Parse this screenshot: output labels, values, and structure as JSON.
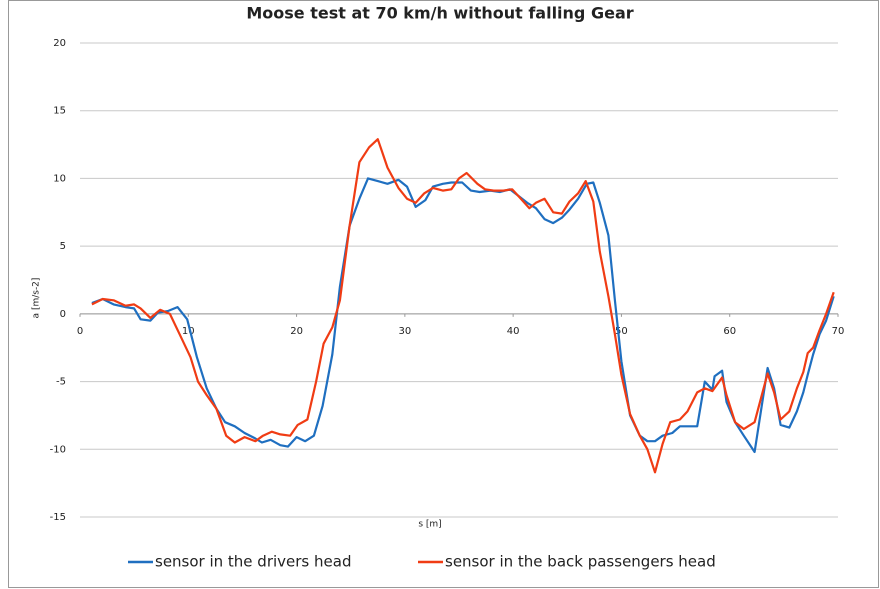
{
  "chart_data": {
    "type": "line",
    "title": "Moose test at 70 km/h without falling Gear",
    "x_label": "s [m]",
    "y_label": "a [m/s-2]",
    "xlim": [
      0,
      70
    ],
    "xticks": [
      0,
      10,
      20,
      30,
      40,
      50,
      60,
      70
    ],
    "ylim": [
      -15,
      20
    ],
    "yticks": [
      -15,
      -10,
      -5,
      0,
      5,
      10,
      15,
      20
    ],
    "grid": true,
    "legend": "bottom",
    "series": [
      {
        "name": "sensor in the drivers head",
        "color": "#1f6fc0",
        "x": [
          1.1,
          2.1,
          3.1,
          4.2,
          5.0,
          5.6,
          6.5,
          7.2,
          8.1,
          9.0,
          9.9,
          10.8,
          11.7,
          12.6,
          13.4,
          14.3,
          15.2,
          16.2,
          16.8,
          17.6,
          18.5,
          19.2,
          20.0,
          20.8,
          21.6,
          22.4,
          23.3,
          24.0,
          24.9,
          25.8,
          26.6,
          27.5,
          28.4,
          29.4,
          30.2,
          31.0,
          31.9,
          32.6,
          33.5,
          34.3,
          35.3,
          36.1,
          36.9,
          37.9,
          38.8,
          39.7,
          40.5,
          41.3,
          42.1,
          42.9,
          43.7,
          44.5,
          45.2,
          46.0,
          46.8,
          47.4,
          48.0,
          48.8,
          49.4,
          50.0,
          50.8,
          51.7,
          52.4,
          53.1,
          53.8,
          54.7,
          55.4,
          56.1,
          57.0,
          57.7,
          58.4,
          58.6,
          59.3,
          59.7,
          60.5,
          61.3,
          62.3,
          63.5,
          64.1,
          64.7,
          65.5,
          66.2,
          66.8,
          67.2,
          67.7,
          68.3,
          68.9,
          69.6
        ],
        "values": [
          0.8,
          1.1,
          0.7,
          0.5,
          0.4,
          -0.4,
          -0.5,
          0.1,
          0.2,
          0.5,
          -0.4,
          -3.2,
          -5.5,
          -7.0,
          -8.0,
          -8.3,
          -8.8,
          -9.2,
          -9.5,
          -9.3,
          -9.7,
          -9.8,
          -9.1,
          -9.4,
          -9.0,
          -6.8,
          -3.0,
          2.0,
          6.5,
          8.5,
          10.0,
          9.8,
          9.6,
          9.9,
          9.4,
          7.9,
          8.4,
          9.4,
          9.6,
          9.7,
          9.7,
          9.1,
          9.0,
          9.1,
          9.0,
          9.2,
          8.7,
          8.2,
          7.8,
          7.0,
          6.7,
          7.1,
          7.7,
          8.5,
          9.6,
          9.7,
          8.2,
          5.8,
          1.0,
          -3.5,
          -7.5,
          -9.0,
          -9.4,
          -9.4,
          -9.0,
          -8.8,
          -8.3,
          -8.3,
          -8.3,
          -5.0,
          -5.6,
          -4.6,
          -4.2,
          -6.5,
          -8.0,
          -9.0,
          -10.2,
          -4.0,
          -5.5,
          -8.2,
          -8.4,
          -7.2,
          -5.8,
          -4.5,
          -3.0,
          -1.5,
          -0.5,
          1.3
        ]
      },
      {
        "name": "sensor in the back passengers head",
        "color": "#f03c14",
        "x": [
          1.1,
          2.1,
          3.1,
          4.2,
          5.0,
          5.6,
          6.5,
          7.4,
          8.3,
          9.2,
          10.2,
          10.9,
          11.7,
          12.6,
          13.5,
          14.3,
          15.2,
          16.2,
          16.9,
          17.7,
          18.5,
          19.4,
          20.1,
          21.0,
          21.8,
          22.5,
          23.3,
          24.0,
          24.9,
          25.8,
          26.7,
          27.5,
          28.4,
          29.4,
          30.2,
          31.0,
          31.8,
          32.6,
          33.5,
          34.3,
          35.0,
          35.7,
          36.7,
          37.4,
          38.2,
          39.1,
          39.9,
          40.6,
          41.5,
          42.1,
          42.9,
          43.7,
          44.5,
          45.2,
          46.0,
          46.7,
          47.4,
          48.0,
          48.8,
          49.4,
          50.0,
          50.8,
          51.7,
          52.4,
          53.1,
          53.8,
          54.5,
          55.4,
          56.1,
          57.0,
          57.7,
          58.4,
          59.3,
          59.7,
          60.5,
          61.3,
          62.3,
          63.5,
          64.1,
          64.7,
          65.5,
          66.2,
          66.8,
          67.2,
          67.7,
          68.3,
          68.9,
          69.6
        ],
        "values": [
          0.7,
          1.1,
          1.0,
          0.6,
          0.7,
          0.4,
          -0.3,
          0.3,
          0.0,
          -1.5,
          -3.2,
          -5.0,
          -6.0,
          -7.0,
          -9.0,
          -9.5,
          -9.1,
          -9.4,
          -9.0,
          -8.7,
          -8.9,
          -9.0,
          -8.2,
          -7.8,
          -5.0,
          -2.2,
          -1.0,
          1.0,
          6.5,
          11.2,
          12.3,
          12.9,
          10.8,
          9.3,
          8.5,
          8.2,
          8.9,
          9.3,
          9.1,
          9.2,
          10.0,
          10.4,
          9.6,
          9.2,
          9.1,
          9.1,
          9.2,
          8.6,
          7.8,
          8.2,
          8.5,
          7.5,
          7.4,
          8.3,
          8.9,
          9.8,
          8.3,
          4.6,
          1.3,
          -1.5,
          -4.5,
          -7.4,
          -9.0,
          -10.0,
          -11.7,
          -9.6,
          -8.0,
          -7.8,
          -7.2,
          -5.8,
          -5.5,
          -5.7,
          -4.7,
          -6.0,
          -8.0,
          -8.5,
          -8.0,
          -4.4,
          -5.8,
          -7.8,
          -7.2,
          -5.5,
          -4.3,
          -2.9,
          -2.5,
          -1.2,
          0.0,
          1.6
        ]
      }
    ]
  }
}
